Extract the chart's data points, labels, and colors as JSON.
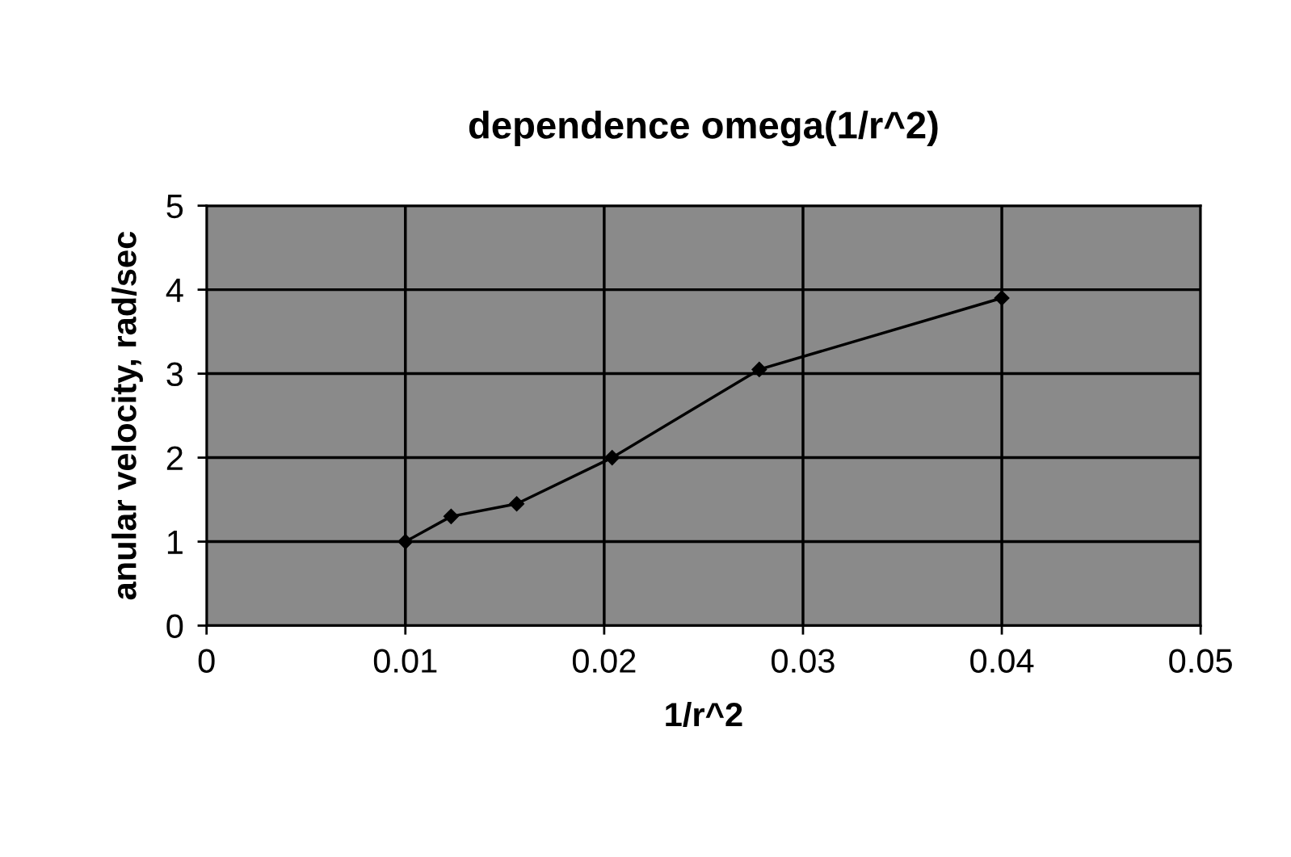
{
  "chart_data": {
    "type": "line",
    "title": "dependence omega(1/r^2)",
    "xlabel": "1/r^2",
    "ylabel": "anular velocity, rad/sec",
    "x": [
      0.01,
      0.0123,
      0.0156,
      0.0204,
      0.0278,
      0.04
    ],
    "series": [
      {
        "color": "#000000",
        "values": [
          1.0,
          1.3,
          1.45,
          2.0,
          3.05,
          3.9
        ]
      }
    ],
    "xlim": [
      0,
      0.05
    ],
    "xticks": [
      0,
      0.01,
      0.02,
      0.03,
      0.04,
      0.05
    ],
    "ylim": [
      0,
      5
    ],
    "yticks": [
      0,
      1,
      2,
      3,
      4,
      5
    ],
    "grid": true,
    "marker": "diamond",
    "line_style": "solid"
  }
}
